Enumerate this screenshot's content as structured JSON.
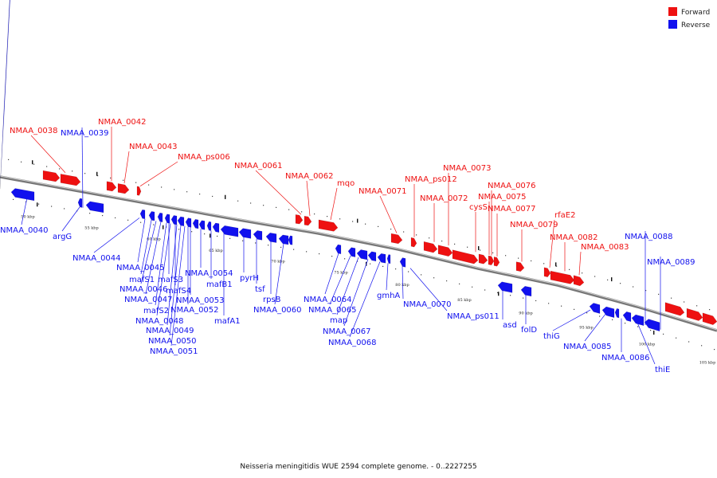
{
  "caption": "Neisseria meningitidis WUE 2594 complete genome. - 0..2227255",
  "legend": {
    "forward": {
      "label": "Forward",
      "color": "#ee1111"
    },
    "reverse": {
      "label": "Reverse",
      "color": "#1111ee"
    }
  },
  "colors": {
    "forward": "#ee1111",
    "reverse": "#1111ee",
    "backbone": "#888888",
    "leader": "#ee1111"
  },
  "scale": [
    "50 kbp",
    "55 kbp",
    "60 kbp",
    "65 kbp",
    "70 kbp",
    "75 kbp",
    "80 kbp",
    "85 kbp",
    "90 kbp",
    "95 kbp",
    "100 kbp",
    "105 kbp"
  ],
  "forward_labels": [
    "NMAA_0038",
    "NMAA_0042",
    "NMAA_0043",
    "NMAA_ps006",
    "NMAA_0061",
    "NMAA_0062",
    "mqo",
    "NMAA_0071",
    "NMAA_ps012",
    "NMAA_0073",
    "NMAA_0072",
    "cysS",
    "NMAA_0076",
    "NMAA_0075",
    "NMAA_0077",
    "NMAA_0079",
    "rfaE2",
    "NMAA_0082",
    "NMAA_0083"
  ],
  "reverse_labels": [
    "NMAA_0039",
    "NMAA_0040",
    "argG",
    "NMAA_0044",
    "NMAA_0045",
    "mafS1",
    "mafS3",
    "NMAA_0054",
    "NMAA_0046",
    "mafS4",
    "mafB1",
    "pyrH",
    "NMAA_0047",
    "NMAA_0053",
    "tsf",
    "mafS2",
    "NMAA_0052",
    "rpsB",
    "NMAA_0060",
    "NMAA_0048",
    "mafA1",
    "NMAA_0049",
    "NMAA_0050",
    "NMAA_0051",
    "NMAA_0064",
    "NMAA_0065",
    "map",
    "NMAA_0067",
    "NMAA_0068",
    "gmhA",
    "NMAA_0070",
    "NMAA_ps011",
    "asd",
    "folD",
    "NMAA_0088",
    "NMAA_0089",
    "thiG",
    "NMAA_0085",
    "NMAA_0086",
    "thiE"
  ]
}
